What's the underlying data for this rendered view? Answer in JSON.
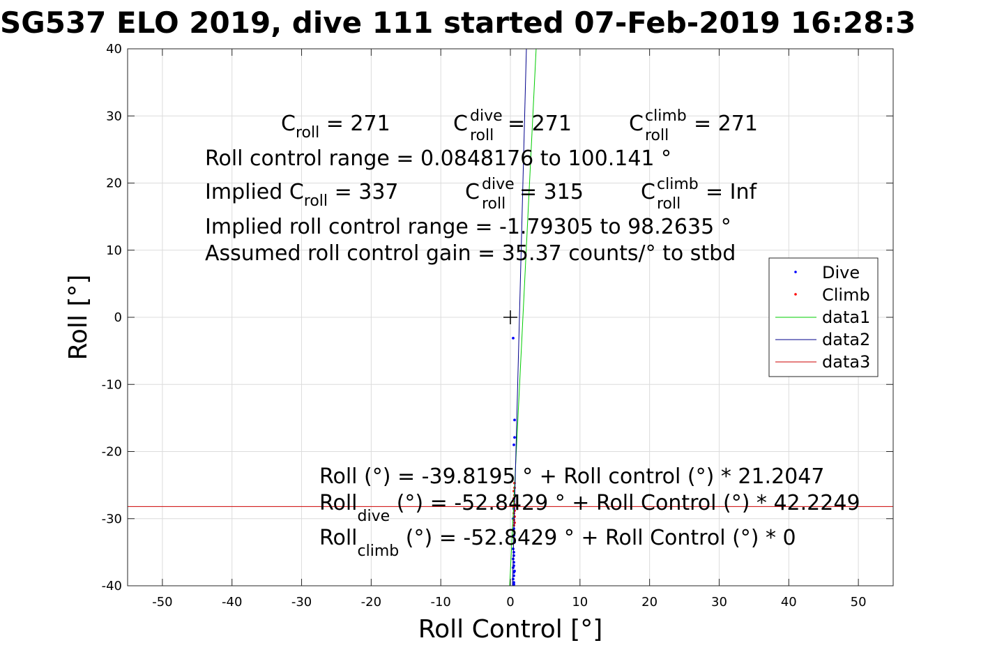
{
  "chart_data": {
    "type": "scatter",
    "title": "SG537 ELO 2019, dive 111 started 07-Feb-2019 16:28:3",
    "xlabel": "Roll Control [°]",
    "ylabel": "Roll [°]",
    "xlim": [
      -55,
      55
    ],
    "ylim": [
      -40,
      40
    ],
    "xticks": [
      -50,
      -40,
      -30,
      -20,
      -10,
      0,
      10,
      20,
      30,
      40,
      50
    ],
    "yticks": [
      -40,
      -30,
      -20,
      -10,
      0,
      10,
      20,
      30,
      40
    ],
    "xtick_labels": [
      "-50",
      "-40",
      "-30",
      "-20",
      "-10",
      "0",
      "10",
      "20",
      "30",
      "40",
      "50"
    ],
    "ytick_labels": [
      "-40",
      "-30",
      "-20",
      "-10",
      "0",
      "10",
      "20",
      "30",
      "40"
    ],
    "grid": true,
    "legend_position": "center-right",
    "center_marker": {
      "x": 0,
      "y": 0,
      "label": "+"
    },
    "series": [
      {
        "name": "Dive",
        "kind": "points",
        "color": "#0000ff",
        "x": [
          0.4,
          0.6,
          0.6,
          0.5,
          0.5,
          0.5,
          0.4,
          0.5,
          0.5,
          0.6,
          0.4,
          0.5,
          0.5,
          0.4,
          0.5,
          0.5,
          0.4,
          0.6,
          0.5,
          0.5,
          0.4,
          0.5,
          0.5
        ],
        "y": [
          -3.1,
          -15.3,
          -17.9,
          -19.0,
          -27.0,
          -28.5,
          -30.0,
          -31.5,
          -32.5,
          -33.5,
          -34.5,
          -35.0,
          -35.5,
          -36.0,
          -36.5,
          -37.0,
          -37.3,
          -37.8,
          -38.0,
          -38.5,
          -39.0,
          -39.5,
          -39.8
        ]
      },
      {
        "name": "Climb",
        "kind": "points",
        "color": "#ff0000",
        "x": [
          0.6,
          0.6,
          0.5,
          0.6,
          0.5,
          0.5,
          0.6,
          0.5,
          0.6,
          0.5,
          0.6,
          0.5,
          0.6,
          0.5
        ],
        "y": [
          -24.7,
          -25.4,
          -25.9,
          -26.5,
          -27.0,
          -27.4,
          -27.9,
          -28.3,
          -28.8,
          -29.2,
          -29.7,
          -30.2,
          -30.6,
          -31.0
        ]
      },
      {
        "name": "data1",
        "kind": "line",
        "color": "#00cc00",
        "x": [
          -0.1,
          3.7
        ],
        "y": [
          -40,
          40
        ]
      },
      {
        "name": "data2",
        "kind": "line",
        "color": "#00008b",
        "x": [
          0.3,
          2.3
        ],
        "y": [
          -40,
          40
        ]
      },
      {
        "name": "data3",
        "kind": "line",
        "color": "#cc0000",
        "x": [
          -55,
          55
        ],
        "y": [
          -28.2,
          -28.2
        ]
      }
    ],
    "annotations": {
      "line1": {
        "a_pre": "C",
        "a_sub": "roll",
        "a_val": " =  271",
        "b_pre": "C",
        "b_sup": "dive",
        "b_sub": "roll",
        "b_val": " =  271",
        "c_pre": "C",
        "c_sup": "climb",
        "c_sub": "roll",
        "c_val": " =  271"
      },
      "line2": "Roll control range = 0.0848176 to 100.141 °",
      "line3": {
        "a_pre": "Implied C",
        "a_sub": "roll",
        "a_val": " =  337",
        "b_pre": "C",
        "b_sup": "dive",
        "b_sub": "roll",
        "b_val": " =  315",
        "c_pre": "C",
        "c_sup": "climb",
        "c_sub": "roll",
        "c_val": " =  Inf"
      },
      "line4": "Implied roll control range = -1.79305 to 98.2635 °",
      "line5": "Assumed roll control gain = 35.37 counts/° to stbd",
      "fit1": "Roll (°) = -39.8195 ° + Roll control (°) * 21.2047",
      "fit2": {
        "pre": "Roll",
        "sub": "dive",
        "post": " (°) = -52.8429 ° + Roll Control (°) * 42.2249"
      },
      "fit3": {
        "pre": "Roll",
        "sub": "climb",
        "post": " (°) = -52.8429 ° + Roll Control (°) * 0"
      }
    }
  }
}
